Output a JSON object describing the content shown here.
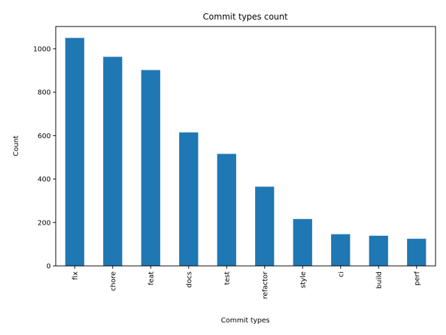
{
  "chart_data": {
    "type": "bar",
    "title": "Commit types count",
    "xlabel": "Commit types",
    "ylabel": "Count",
    "categories": [
      "fix",
      "chore",
      "feat",
      "docs",
      "test",
      "refactor",
      "style",
      "ci",
      "build",
      "perf"
    ],
    "values": [
      1050,
      963,
      902,
      615,
      516,
      365,
      216,
      146,
      139,
      125
    ],
    "ylim": [
      0,
      1102.5
    ],
    "yticks": [
      "0",
      "200",
      "400",
      "600",
      "800",
      "1000"
    ],
    "bar_color": "#1f77b4",
    "grid": false,
    "legend": "none"
  }
}
